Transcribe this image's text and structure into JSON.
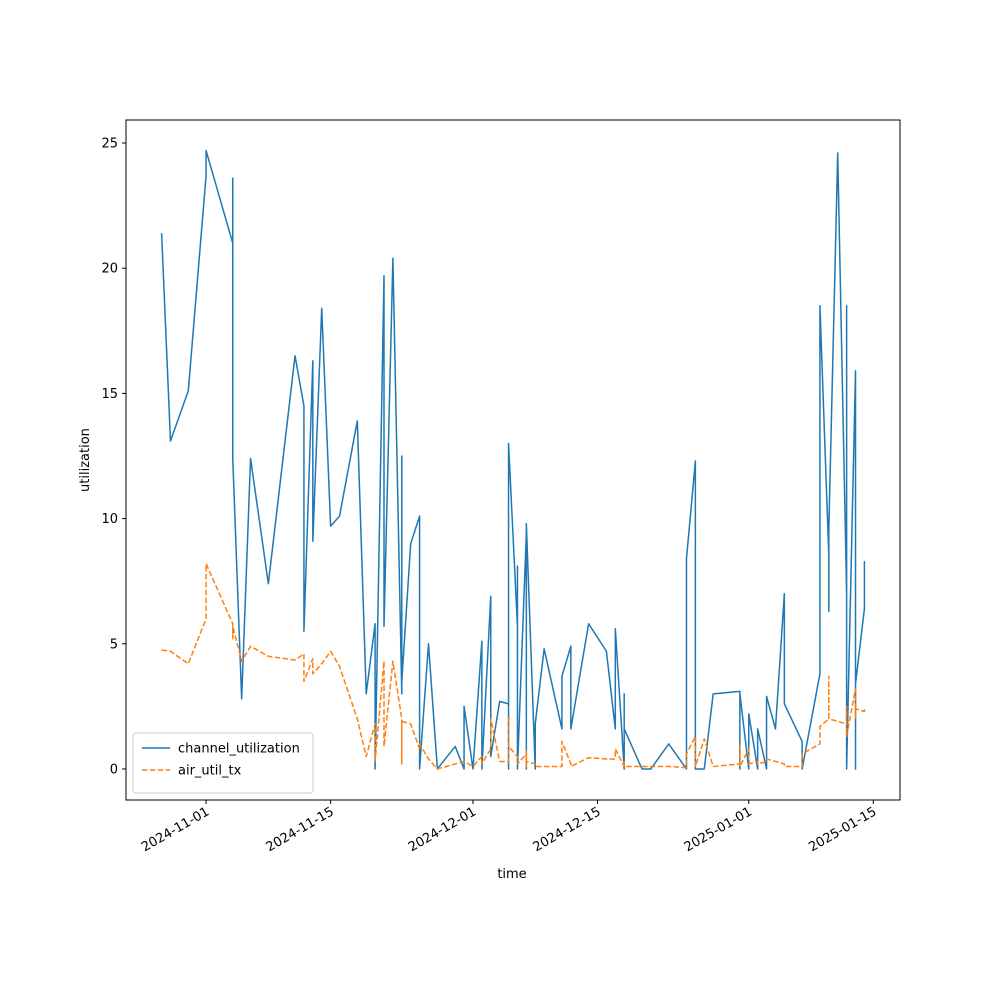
{
  "chart_data": {
    "type": "line",
    "xlabel": "time",
    "ylabel": "utilization",
    "x": [
      "2024-10-27",
      "2024-10-28",
      "2024-10-30",
      "2024-11-01",
      "2024-11-01",
      "2024-11-04",
      "2024-11-04",
      "2024-11-04",
      "2024-11-05",
      "2024-11-06",
      "2024-11-08",
      "2024-11-11",
      "2024-11-12",
      "2024-11-12",
      "2024-11-13",
      "2024-11-13",
      "2024-11-14",
      "2024-11-15",
      "2024-11-16",
      "2024-11-18",
      "2024-11-19",
      "2024-11-20",
      "2024-11-20",
      "2024-11-21",
      "2024-11-21",
      "2024-11-22",
      "2024-11-23",
      "2024-11-23",
      "2024-11-23",
      "2024-11-24",
      "2024-11-25",
      "2024-11-25",
      "2024-11-26",
      "2024-11-27",
      "2024-11-29",
      "2024-11-30",
      "2024-11-30",
      "2024-12-01",
      "2024-12-02",
      "2024-12-02",
      "2024-12-03",
      "2024-12-03",
      "2024-12-04",
      "2024-12-05",
      "2024-12-05",
      "2024-12-05",
      "2024-12-06",
      "2024-12-06",
      "2024-12-06",
      "2024-12-07",
      "2024-12-07",
      "2024-12-07",
      "2024-12-07",
      "2024-12-07",
      "2024-12-08",
      "2024-12-08",
      "2024-12-09",
      "2024-12-11",
      "2024-12-11",
      "2024-12-12",
      "2024-12-12",
      "2024-12-14",
      "2024-12-16",
      "2024-12-17",
      "2024-12-17",
      "2024-12-18",
      "2024-12-18",
      "2024-12-18",
      "2024-12-18",
      "2024-12-20",
      "2024-12-21",
      "2024-12-23",
      "2024-12-25",
      "2024-12-25",
      "2024-12-26",
      "2024-12-26",
      "2024-12-27",
      "2024-12-28",
      "2024-12-31",
      "2024-12-31",
      "2024-12-31",
      "2025-01-01",
      "2025-01-01",
      "2025-01-02",
      "2025-01-02",
      "2025-01-03",
      "2025-01-03",
      "2025-01-04",
      "2025-01-05",
      "2025-01-05",
      "2025-01-07",
      "2025-01-07",
      "2025-01-09",
      "2025-01-09",
      "2025-01-10",
      "2025-01-10",
      "2025-01-10",
      "2025-01-11",
      "2025-01-12",
      "2025-01-12",
      "2025-01-12",
      "2025-01-13",
      "2025-01-13",
      "2025-01-13",
      "2025-01-13",
      "2025-01-14",
      "2025-01-14"
    ],
    "series": [
      {
        "name": "channel_utilization",
        "color": "#1f77b4",
        "linestyle": "solid",
        "values": [
          21.4,
          13.1,
          15.1,
          23.7,
          24.7,
          21.0,
          23.6,
          12.4,
          2.8,
          12.4,
          7.4,
          16.5,
          14.5,
          5.5,
          16.3,
          9.1,
          18.4,
          9.7,
          10.1,
          13.9,
          3.0,
          5.8,
          0,
          19.7,
          5.7,
          20.4,
          3.0,
          12.5,
          3.5,
          9.0,
          10.1,
          0,
          5.0,
          0,
          0.9,
          0,
          2.5,
          0,
          5.1,
          0,
          6.9,
          0.5,
          2.7,
          2.6,
          0,
          13.0,
          5.7,
          8.1,
          0,
          9.4,
          0,
          4.3,
          0,
          9.8,
          0,
          1.8,
          4.8,
          1.6,
          3.7,
          4.9,
          1.6,
          5.8,
          4.7,
          1.6,
          5.6,
          0,
          3.0,
          0,
          1.6,
          0,
          0,
          1.0,
          0,
          8.4,
          12.3,
          0,
          0,
          3.0,
          3.1,
          0,
          3.0,
          0,
          2.2,
          0,
          1.6,
          0,
          2.9,
          1.6,
          7.0,
          2.6,
          1.1,
          0,
          3.8,
          18.5,
          8.5,
          6.3,
          9.6,
          24.6,
          7.0,
          18.5,
          0,
          15.9,
          0,
          10.7,
          3.4,
          6.4,
          8.3
        ]
      },
      {
        "name": "air_util_tx",
        "color": "#ff7f0e",
        "linestyle": "dashed",
        "values": [
          4.75,
          4.7,
          4.2,
          6.0,
          8.2,
          5.8,
          5.2,
          5.7,
          4.3,
          4.9,
          4.5,
          4.35,
          4.6,
          3.5,
          4.4,
          3.8,
          4.2,
          4.7,
          4.1,
          2.0,
          0.5,
          1.8,
          0.3,
          4.3,
          0.9,
          4.3,
          2.0,
          0.2,
          1.9,
          1.8,
          0.8,
          1.0,
          0.4,
          0,
          0.2,
          0.3,
          0.3,
          0.1,
          0.5,
          0.2,
          0.8,
          2.0,
          0.3,
          0.3,
          2.1,
          0.9,
          0.5,
          0.3,
          0.2,
          0.6,
          0.1,
          0.3,
          0.8,
          0.3,
          0.2,
          0.1,
          0.1,
          0.1,
          1.1,
          0.2,
          0.1,
          0.45,
          0.4,
          0.4,
          0.8,
          0.1,
          0.3,
          0.1,
          0.1,
          0.1,
          0.1,
          0.1,
          0.05,
          0.6,
          1.3,
          0.1,
          1.2,
          0.1,
          0.2,
          1.0,
          0.1,
          0.8,
          0.2,
          0.3,
          0.2,
          0.3,
          0.4,
          0.3,
          0.2,
          0.1,
          0.1,
          0.6,
          1.0,
          1.7,
          2.0,
          3.7,
          2.0,
          1.9,
          1.8,
          2.5,
          1.3,
          3.2,
          2.0,
          2.2,
          2.4,
          2.3,
          2.4
        ]
      }
    ],
    "xlim": [
      "2024-10-23",
      "2025-01-18"
    ],
    "xticks": [
      "2024-11-01",
      "2024-11-15",
      "2024-12-01",
      "2024-12-15",
      "2025-01-01",
      "2025-01-15"
    ],
    "ylim": [
      -1.24,
      25.92
    ],
    "yticks": [
      0,
      5,
      10,
      15,
      20,
      25
    ],
    "grid": false,
    "legend": "lower left"
  }
}
